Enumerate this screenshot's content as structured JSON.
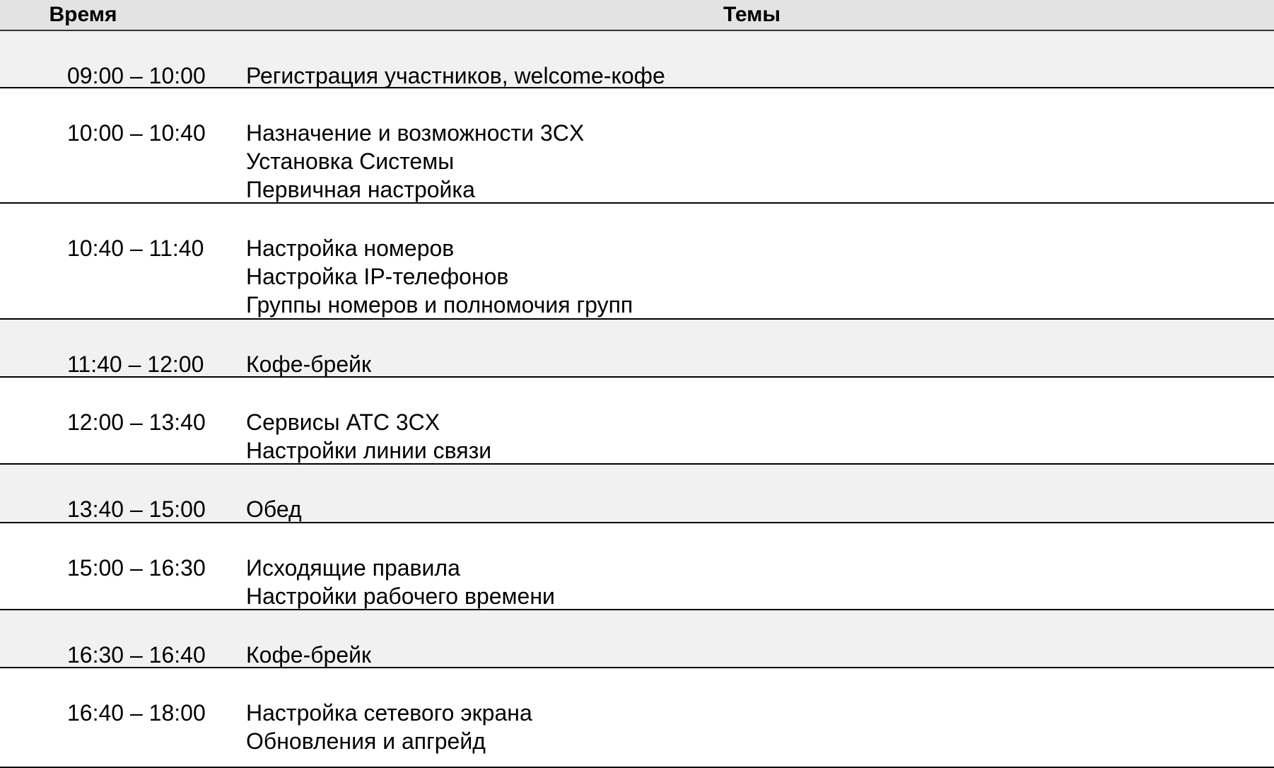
{
  "header": {
    "time": "Время",
    "topics": "Темы"
  },
  "colors": {
    "header_bg": "#e3e3e3",
    "break_row_bg": "#f1f1f1",
    "border": "#000000"
  },
  "rows": [
    {
      "time": "09:00 – 10:00",
      "topics": [
        "Регистрация участников, welcome-кофе"
      ],
      "shaded": true
    },
    {
      "time": "10:00 – 10:40",
      "topics": [
        "Назначение и возможности 3CX",
        "Установка Системы",
        "Первичная настройка"
      ],
      "shaded": false
    },
    {
      "time": "10:40 – 11:40",
      "topics": [
        "Настройка номеров",
        "Настройка IP-телефонов",
        "Группы номеров и полномочия групп"
      ],
      "shaded": false
    },
    {
      "time": "11:40 – 12:00",
      "topics": [
        "Кофе-брейк"
      ],
      "shaded": true
    },
    {
      "time": "12:00 – 13:40",
      "topics": [
        "Сервисы АТС 3CX",
        "Настройки линии связи"
      ],
      "shaded": false
    },
    {
      "time": "13:40 – 15:00",
      "topics": [
        "Обед"
      ],
      "shaded": true
    },
    {
      "time": "15:00 – 16:30",
      "topics": [
        "Исходящие правила",
        "Настройки рабочего времени"
      ],
      "shaded": false
    },
    {
      "time": "16:30 – 16:40",
      "topics": [
        "Кофе-брейк"
      ],
      "shaded": true
    },
    {
      "time": "16:40 – 18:00",
      "topics": [
        "Настройка сетевого экрана",
        "Обновления и апгрейд"
      ],
      "shaded": false
    }
  ]
}
